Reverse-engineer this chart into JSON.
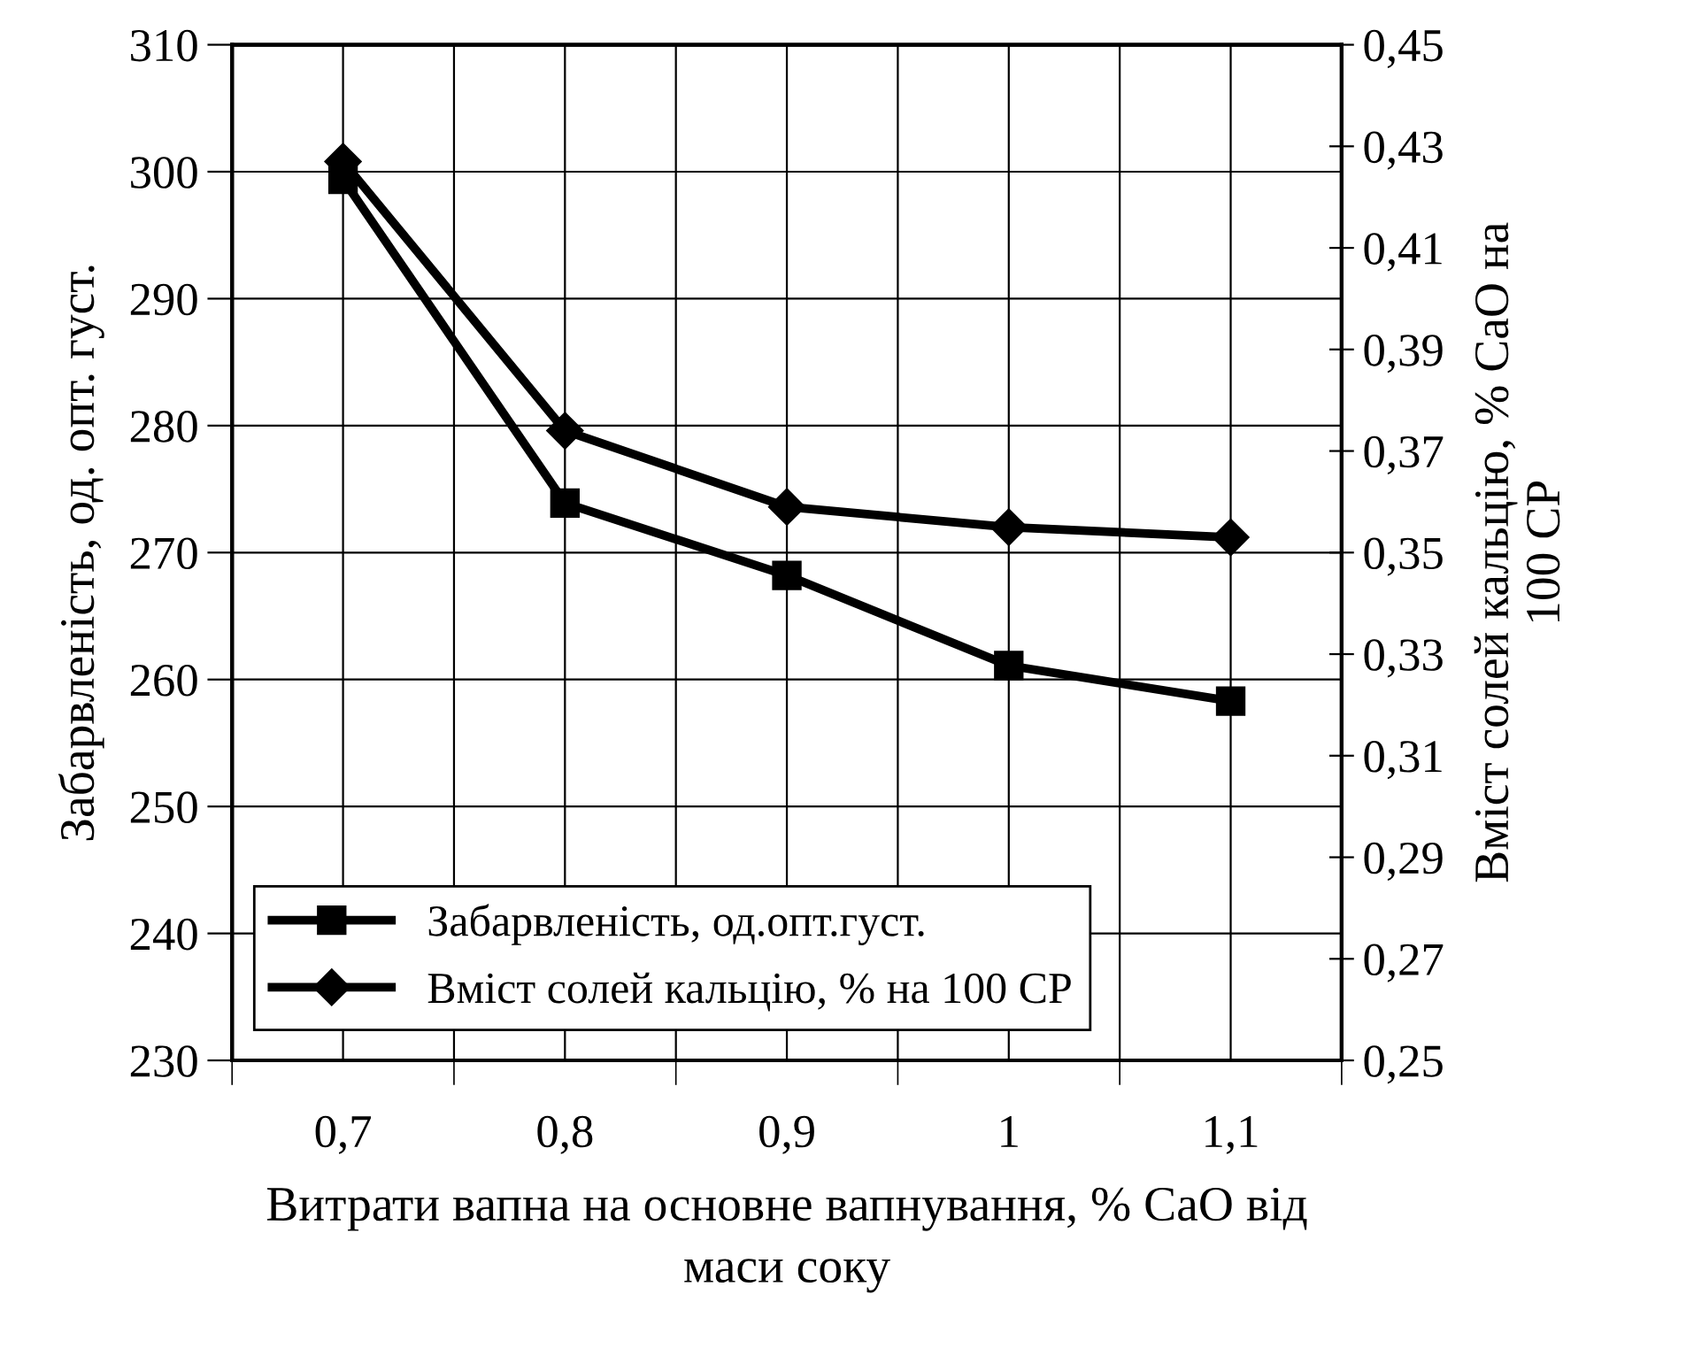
{
  "chart_data": {
    "type": "line",
    "xlabel": "Витрати вапна на основне вапнування, % CaO від\nмаси соку",
    "ylabel": "Забарвленість, од. опт. густ.",
    "y2label": "Вміст солей кальцію, % CaO на\n100 СР",
    "categories": [
      "0,7",
      "0,8",
      "0,9",
      "1",
      "1,1"
    ],
    "series": [
      {
        "name": "Забарвленість, од.опт.густ.",
        "color": "#000000",
        "marker": "square",
        "values": [
          299.4,
          273.9,
          268.2,
          261.1,
          258.3
        ]
      },
      {
        "name": "Вміст солей кальцію, % на 100 СР",
        "color": "#000000",
        "marker": "diamond",
        "axis": "y2",
        "values": [
          0.427,
          0.374,
          0.359,
          0.355,
          0.353
        ]
      }
    ],
    "ylim": [
      230,
      310
    ],
    "yticks": [
      230,
      240,
      250,
      260,
      270,
      280,
      290,
      300,
      310
    ],
    "y2lim": [
      0.25,
      0.45
    ],
    "y2ticks": [
      {
        "value": 0.25,
        "label": "0,25"
      },
      {
        "value": 0.27,
        "label": "0,27"
      },
      {
        "value": 0.29,
        "label": "0,29"
      },
      {
        "value": 0.31,
        "label": "0,31"
      },
      {
        "value": 0.33,
        "label": "0,33"
      },
      {
        "value": 0.35,
        "label": "0,35"
      },
      {
        "value": 0.37,
        "label": "0,37"
      },
      {
        "value": 0.39,
        "label": "0,39"
      },
      {
        "value": 0.41,
        "label": "0,41"
      },
      {
        "value": 0.43,
        "label": "0,43"
      },
      {
        "value": 0.45,
        "label": "0,45"
      }
    ],
    "grid": true,
    "legend": "bottom left",
    "line_style": "solid"
  }
}
